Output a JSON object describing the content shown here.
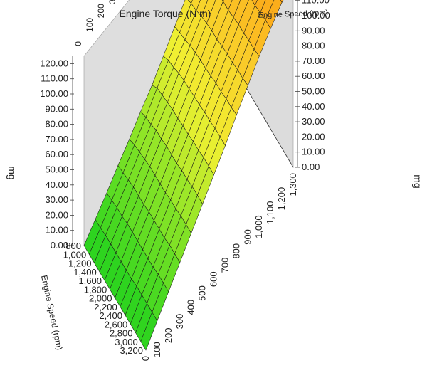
{
  "chart_data": {
    "type": "surface3d",
    "x_axis": {
      "label": "Engine Torque (N m)",
      "ticks": [
        "0",
        "100",
        "200",
        "300",
        "400",
        "500",
        "600",
        "700",
        "800",
        "900",
        "1,000",
        "1,100",
        "1,200",
        "1,300"
      ],
      "range": [
        0,
        1300
      ]
    },
    "y_axis": {
      "label": "Engine Speed (rpm)",
      "ticks": [
        "800",
        "1,000",
        "1,200",
        "1,400",
        "1,600",
        "1,800",
        "2,000",
        "2,200",
        "2,400",
        "2,600",
        "2,800",
        "3,000",
        "3,200"
      ],
      "range": [
        800,
        3200
      ]
    },
    "z_axis": {
      "label": "mg",
      "ticks": [
        "0.00",
        "10.00",
        "20.00",
        "30.00",
        "40.00",
        "50.00",
        "60.00",
        "70.00",
        "80.00",
        "90.00",
        "100.00",
        "110.00",
        "120.00"
      ],
      "range": [
        0,
        125
      ]
    },
    "torque_values": [
      0,
      100,
      200,
      300,
      400,
      500,
      600,
      700,
      800,
      900,
      1000,
      1100,
      1200,
      1300
    ],
    "speed_values": [
      800,
      1000,
      1200,
      1400,
      1600,
      1800,
      2000,
      2200,
      2400,
      2600,
      2800,
      3000,
      3200
    ],
    "values": [
      [
        0,
        8,
        16,
        25,
        33,
        42,
        50,
        60,
        70,
        80,
        88,
        96,
        106,
        118
      ],
      [
        0,
        8,
        17,
        26,
        35,
        44,
        54,
        63,
        72,
        82,
        92,
        101,
        110,
        119
      ],
      [
        0,
        9,
        18,
        27,
        36,
        45,
        55,
        64,
        73,
        83,
        93,
        103,
        112,
        120
      ],
      [
        0,
        9,
        18,
        28,
        37,
        47,
        56,
        66,
        75,
        85,
        95,
        105,
        114,
        121
      ],
      [
        0,
        9,
        19,
        28,
        38,
        47,
        57,
        67,
        76,
        86,
        96,
        106,
        115,
        121
      ],
      [
        0,
        9,
        19,
        28,
        38,
        48,
        57,
        67,
        77,
        87,
        97,
        106,
        115,
        121
      ],
      [
        0,
        9,
        19,
        29,
        38,
        48,
        58,
        68,
        77,
        87,
        97,
        107,
        116,
        122
      ],
      [
        0,
        9,
        19,
        29,
        38,
        48,
        58,
        68,
        78,
        88,
        98,
        107,
        116,
        122
      ],
      [
        0,
        10,
        19,
        29,
        39,
        49,
        59,
        69,
        79,
        89,
        99,
        108,
        117,
        122
      ],
      [
        0,
        10,
        19,
        29,
        39,
        49,
        59,
        69,
        79,
        89,
        99,
        108,
        117,
        122
      ],
      [
        0,
        10,
        20,
        30,
        40,
        50,
        60,
        70,
        80,
        90,
        100,
        109,
        118,
        122
      ],
      [
        0,
        10,
        20,
        30,
        40,
        50,
        60,
        70,
        80,
        90,
        100,
        110,
        118,
        122
      ],
      [
        0,
        10,
        20,
        30,
        40,
        50,
        60,
        70,
        81,
        91,
        101,
        110,
        118,
        122
      ]
    ]
  }
}
